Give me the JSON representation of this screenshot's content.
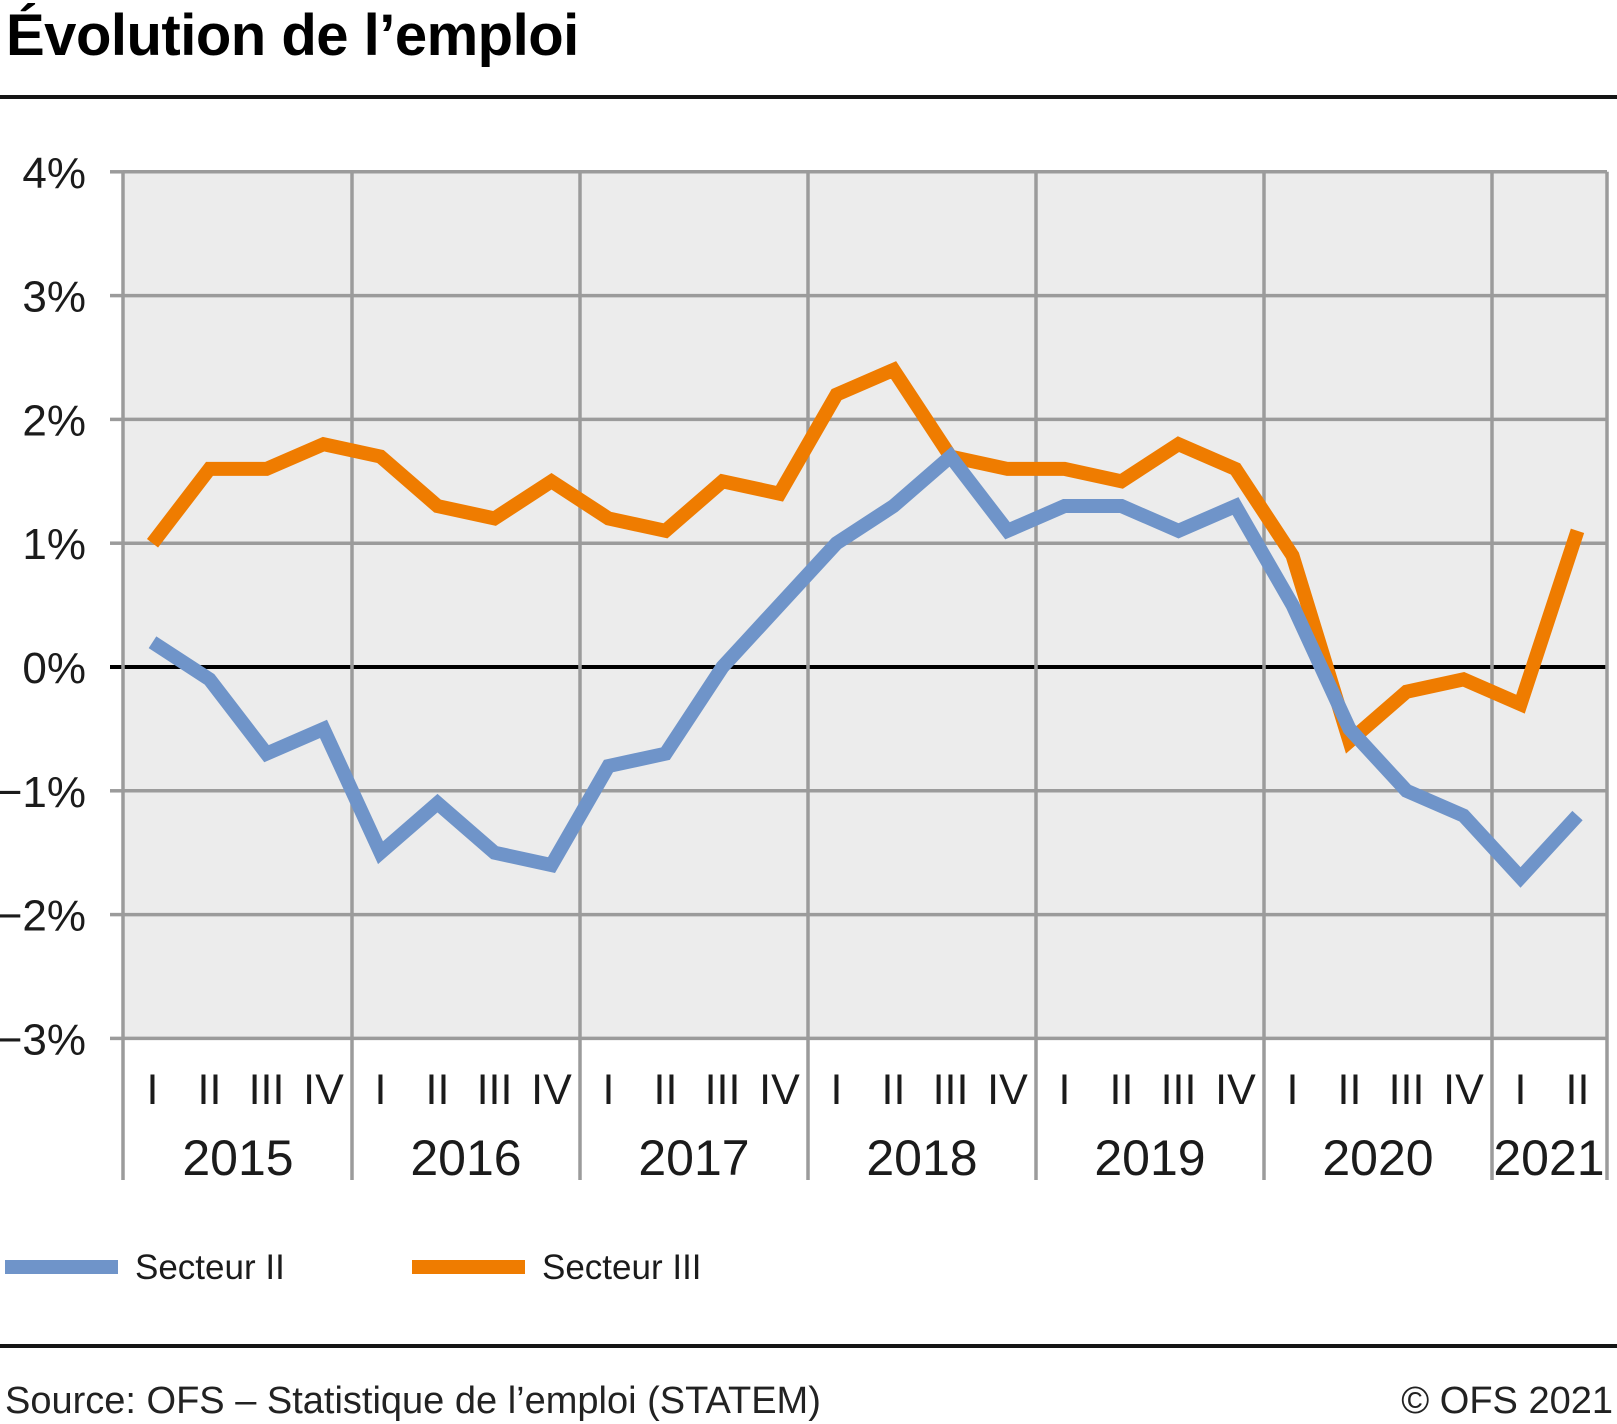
{
  "title": "Évolution de l’emploi",
  "legend": {
    "items": [
      {
        "label": "Secteur II",
        "color": "#6f94c9"
      },
      {
        "label": "Secteur III",
        "color": "#ef7c00"
      }
    ]
  },
  "footer": {
    "source": "Source: OFS – Statistique de l’emploi (STATEM)",
    "copyright": "© OFS 2021"
  },
  "chart_data": {
    "type": "line",
    "title": "Évolution de l’emploi",
    "y_unit": "%",
    "ylim": [
      -3,
      4
    ],
    "grid": true,
    "zero_line": true,
    "legend_position": "bottom-left",
    "plot_background": "#ececec",
    "grid_color": "#9b9b9b",
    "text_color": "#1b1b1b",
    "y_ticks": [
      {
        "value": 4,
        "label": "4%"
      },
      {
        "value": 3,
        "label": "3%"
      },
      {
        "value": 2,
        "label": "2%"
      },
      {
        "value": 1,
        "label": "1%"
      },
      {
        "value": 0,
        "label": "0%"
      },
      {
        "value": -1,
        "label": "−1%"
      },
      {
        "value": -2,
        "label": "−2%"
      },
      {
        "value": -3,
        "label": "−3%"
      }
    ],
    "quarter_labels": [
      "I",
      "II",
      "III",
      "IV",
      "I",
      "II",
      "III",
      "IV",
      "I",
      "II",
      "III",
      "IV",
      "I",
      "II",
      "III",
      "IV",
      "I",
      "II",
      "III",
      "IV",
      "I",
      "II",
      "III",
      "IV",
      "I",
      "II"
    ],
    "years": [
      {
        "label": "2015",
        "n_quarters": 4
      },
      {
        "label": "2016",
        "n_quarters": 4
      },
      {
        "label": "2017",
        "n_quarters": 4
      },
      {
        "label": "2018",
        "n_quarters": 4
      },
      {
        "label": "2019",
        "n_quarters": 4
      },
      {
        "label": "2020",
        "n_quarters": 4
      },
      {
        "label": "2021",
        "n_quarters": 2
      }
    ],
    "series": [
      {
        "name": "Secteur II",
        "color": "#6f94c9",
        "values": [
          0.2,
          -0.1,
          -0.7,
          -0.5,
          -1.5,
          -1.1,
          -1.5,
          -1.6,
          -0.8,
          -0.7,
          0.0,
          0.5,
          1.0,
          1.3,
          1.7,
          1.1,
          1.3,
          1.3,
          1.1,
          1.3,
          0.5,
          -0.5,
          -1.0,
          -1.2,
          -1.7,
          -1.2
        ]
      },
      {
        "name": "Secteur III",
        "color": "#ef7c00",
        "values": [
          1.0,
          1.6,
          1.6,
          1.8,
          1.7,
          1.3,
          1.2,
          1.5,
          1.2,
          1.1,
          1.5,
          1.4,
          2.2,
          2.4,
          1.7,
          1.6,
          1.6,
          1.5,
          1.8,
          1.6,
          0.9,
          -0.6,
          -0.2,
          -0.1,
          -0.3,
          1.1
        ]
      }
    ]
  }
}
